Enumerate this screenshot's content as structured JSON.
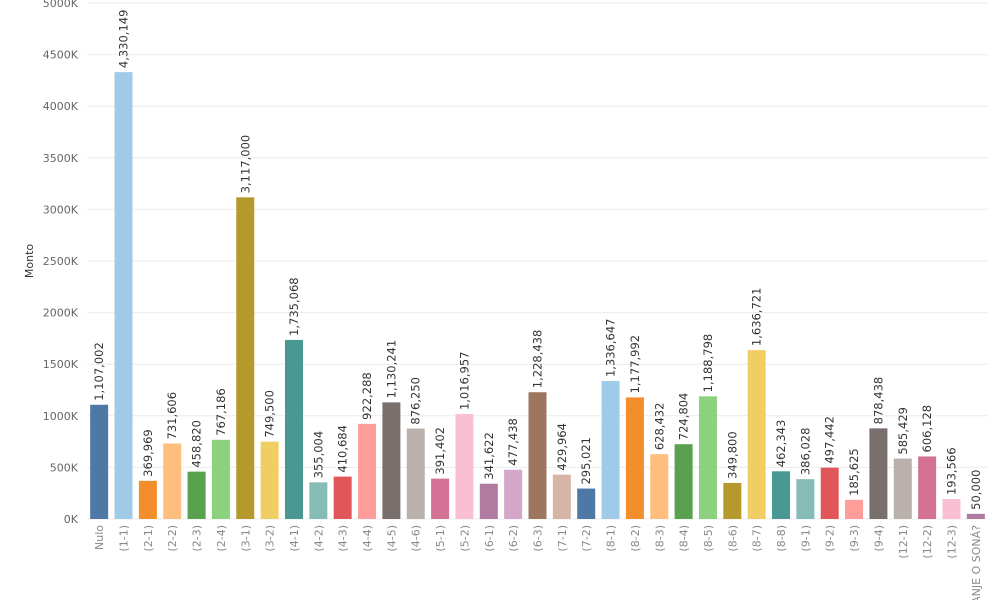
{
  "chart_data": {
    "type": "bar",
    "ylabel": "Monto",
    "ylim": [
      0,
      5000000
    ],
    "yticks": [
      0,
      500000,
      1000000,
      1500000,
      2000000,
      2500000,
      3000000,
      3500000,
      4000000,
      4500000,
      5000000
    ],
    "ytick_labels": [
      "0K",
      "500K",
      "1000K",
      "1500K",
      "2000K",
      "2500K",
      "3000K",
      "3500K",
      "4000K",
      "4500K",
      "5000K"
    ],
    "grid": true,
    "categories": [
      "Nulo",
      "(1-1)",
      "(2-1)",
      "(2-2)",
      "(2-3)",
      "(2-4)",
      "(3-1)",
      "(3-2)",
      "(4-1)",
      "(4-2)",
      "(4-3)",
      "(4-4)",
      "(4-5)",
      "(4-6)",
      "(5-1)",
      "(5-2)",
      "(6-1)",
      "(6-2)",
      "(6-3)",
      "(7-1)",
      "(7-2)",
      "(8-1)",
      "(8-2)",
      "(8-3)",
      "(8-4)",
      "(8-5)",
      "(8-6)",
      "(8-7)",
      "(8-8)",
      "(9-1)",
      "(9-2)",
      "(9-3)",
      "(9-4)",
      "(12-1)",
      "(12-2)",
      "(12-3)",
      "ANJE O SONÁ?"
    ],
    "values": [
      1107002,
      4330149,
      369969,
      731606,
      458820,
      767186,
      3117000,
      749500,
      1735068,
      355004,
      410684,
      922288,
      1130241,
      876250,
      391402,
      1016957,
      341622,
      477438,
      1228438,
      429964,
      295021,
      1336647,
      1177992,
      628432,
      724804,
      1188798,
      349800,
      1636721,
      462343,
      386028,
      497442,
      185625,
      878438,
      585429,
      606128,
      193566,
      50000
    ],
    "value_labels": [
      "1,107,002",
      "4,330,149",
      "369,969",
      "731,606",
      "458,820",
      "767,186",
      "3,117,000",
      "749,500",
      "1,735,068",
      "355,004",
      "410,684",
      "922,288",
      "1,130,241",
      "876,250",
      "391,402",
      "1,016,957",
      "341,622",
      "477,438",
      "1,228,438",
      "429,964",
      "295,021",
      "1,336,647",
      "1,177,992",
      "628,432",
      "724,804",
      "1,188,798",
      "349,800",
      "1,636,721",
      "462,343",
      "386,028",
      "497,442",
      "185,625",
      "878,438",
      "585,429",
      "606,128",
      "193,566",
      "50,000"
    ],
    "colors": [
      "#4e79a7",
      "#a0cbe8",
      "#f28e2b",
      "#ffbe7d",
      "#59a14f",
      "#8cd17d",
      "#b6992d",
      "#f1ce63",
      "#499894",
      "#86bcb6",
      "#e15759",
      "#ff9d9a",
      "#79706e",
      "#bab0ac",
      "#d37295",
      "#fabfd2",
      "#b07aa1",
      "#d4a6c8",
      "#9d7660",
      "#d7b5a6",
      "#4e79a7",
      "#a0cbe8",
      "#f28e2b",
      "#ffbe7d",
      "#59a14f",
      "#8cd17d",
      "#b6992d",
      "#f1ce63",
      "#499894",
      "#86bcb6",
      "#e15759",
      "#ff9d9a",
      "#79706e",
      "#bab0ac",
      "#d37295",
      "#fabfd2",
      "#b07aa1"
    ]
  }
}
